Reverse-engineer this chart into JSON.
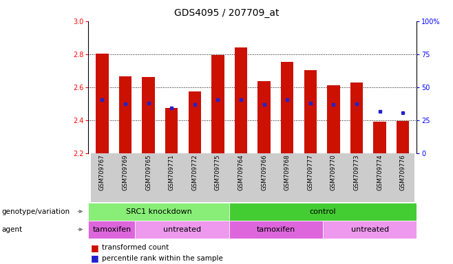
{
  "title": "GDS4095 / 207709_at",
  "samples": [
    "GSM709767",
    "GSM709769",
    "GSM709765",
    "GSM709771",
    "GSM709772",
    "GSM709775",
    "GSM709764",
    "GSM709766",
    "GSM709768",
    "GSM709777",
    "GSM709770",
    "GSM709773",
    "GSM709774",
    "GSM709776"
  ],
  "bar_tops": [
    2.805,
    2.665,
    2.66,
    2.475,
    2.575,
    2.795,
    2.84,
    2.635,
    2.755,
    2.705,
    2.61,
    2.63,
    2.39,
    2.395
  ],
  "blue_markers": [
    2.525,
    2.5,
    2.505,
    2.475,
    2.495,
    2.525,
    2.525,
    2.495,
    2.525,
    2.505,
    2.495,
    2.5,
    2.455,
    2.445
  ],
  "bar_bottom": 2.2,
  "ylim_left": [
    2.2,
    3.0
  ],
  "ylim_right": [
    0,
    100
  ],
  "yticks_left": [
    2.2,
    2.4,
    2.6,
    2.8,
    3.0
  ],
  "yticks_right": [
    0,
    25,
    50,
    75,
    100
  ],
  "bar_color": "#cc1100",
  "blue_color": "#2222cc",
  "groups": [
    {
      "label": "SRC1 knockdown",
      "start": 0,
      "end": 6,
      "color": "#88ee77"
    },
    {
      "label": "control",
      "start": 6,
      "end": 14,
      "color": "#44cc33"
    }
  ],
  "agents": [
    {
      "label": "tamoxifen",
      "start": 0,
      "end": 2,
      "color": "#dd66dd"
    },
    {
      "label": "untreated",
      "start": 2,
      "end": 6,
      "color": "#ee99ee"
    },
    {
      "label": "tamoxifen",
      "start": 6,
      "end": 10,
      "color": "#dd66dd"
    },
    {
      "label": "untreated",
      "start": 10,
      "end": 14,
      "color": "#ee99ee"
    }
  ],
  "legend_items": [
    {
      "label": "transformed count",
      "color": "#cc1100"
    },
    {
      "label": "percentile rank within the sample",
      "color": "#2222cc"
    }
  ],
  "genotype_label": "genotype/variation",
  "agent_label": "agent",
  "bar_width": 0.55,
  "sample_box_color": "#cccccc",
  "fig_width": 6.58,
  "fig_height": 3.84,
  "dpi": 100
}
